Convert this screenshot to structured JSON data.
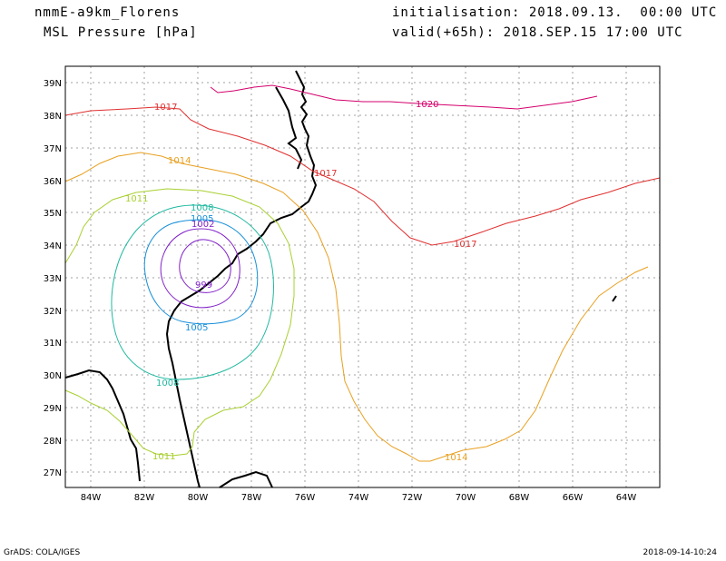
{
  "header": {
    "model": "nmmE-a9km_Florens",
    "field": "MSL Pressure [hPa]",
    "initialisation": "initialisation: 2018.09.13.  00:00 UTC",
    "valid": "valid(+65h): 2018.SEP.15 17:00 UTC"
  },
  "footer": {
    "credit": "GrADS: COLA/IGES",
    "timestamp": "2018-09-14-10:24"
  },
  "axes": {
    "lat_labels": [
      "39N",
      "38N",
      "37N",
      "36N",
      "35N",
      "34N",
      "33N",
      "32N",
      "31N",
      "30N",
      "29N",
      "28N",
      "27N"
    ],
    "lon_labels": [
      "84W",
      "82W",
      "80W",
      "78W",
      "76W",
      "74W",
      "72W",
      "70W",
      "68W",
      "66W",
      "64W"
    ]
  },
  "contours": {
    "c1020": "1020",
    "c1017a": "1017",
    "c1017b": "1017",
    "c1017c": "1017",
    "c1014a": "1014",
    "c1014b": "1014",
    "c1011a": "1011",
    "c1011b": "1011",
    "c1008a": "1008",
    "c1008b": "1008",
    "c1005a": "1005",
    "c1005b": "1005",
    "c1002": "1002",
    "c999": "999"
  },
  "colors": {
    "c1020": "#d4006c",
    "c1017": "#e03030",
    "c1014": "#e8a020",
    "c1011": "#a8d030",
    "c1008": "#20b8a0",
    "c1005": "#1890d8",
    "c1002": "#8020c8",
    "grid": "#a0a0a0"
  }
}
